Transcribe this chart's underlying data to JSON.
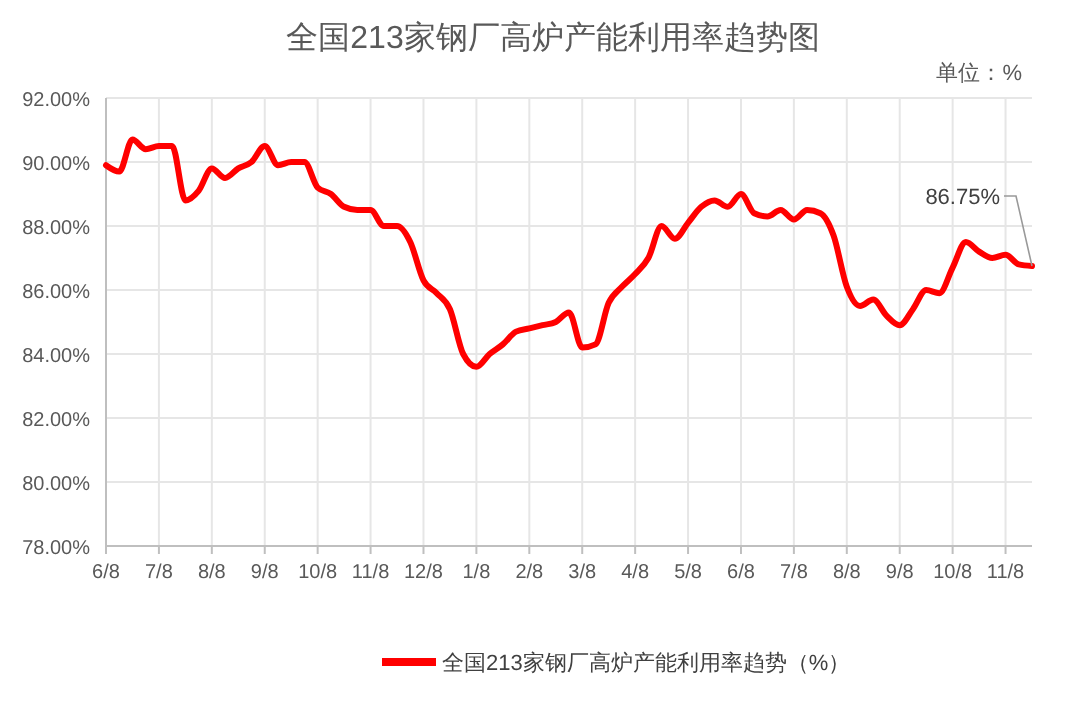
{
  "chart_data": {
    "type": "line",
    "title": "全国213家钢厂高炉产能利用率趋势图",
    "categories": [
      "6/8",
      null,
      null,
      null,
      "7/8",
      null,
      null,
      null,
      "8/8",
      null,
      null,
      null,
      "9/8",
      null,
      null,
      null,
      "10/8",
      null,
      null,
      null,
      "11/8",
      null,
      null,
      null,
      "12/8",
      null,
      null,
      null,
      "1/8",
      null,
      null,
      null,
      "2/8",
      null,
      null,
      null,
      "3/8",
      null,
      null,
      null,
      "4/8",
      null,
      null,
      null,
      "5/8",
      null,
      null,
      null,
      "6/8",
      null,
      null,
      null,
      "7/8",
      null,
      null,
      null,
      "8/8",
      null,
      null,
      null,
      "9/8",
      null,
      null,
      null,
      "10/8",
      null,
      null,
      null,
      "11/8",
      null,
      null
    ],
    "series": [
      {
        "name": "全国213家钢厂高炉产能利用率趋势（%）",
        "color": "#ff0000",
        "values": [
          89.9,
          89.7,
          90.7,
          90.4,
          90.5,
          90.5,
          88.8,
          89.1,
          89.8,
          89.5,
          89.8,
          90.0,
          90.5,
          89.9,
          90.0,
          90.0,
          89.2,
          89.0,
          88.6,
          88.5,
          88.5,
          88.0,
          88.0,
          87.5,
          86.3,
          85.9,
          85.4,
          84.0,
          83.6,
          84.0,
          84.3,
          84.7,
          84.8,
          84.9,
          85.0,
          85.3,
          84.2,
          84.3,
          85.6,
          86.1,
          86.5,
          87.0,
          88.0,
          87.6,
          88.1,
          88.6,
          88.8,
          88.6,
          89.0,
          88.4,
          88.3,
          88.5,
          88.2,
          88.5,
          88.4,
          87.7,
          86.1,
          85.5,
          85.7,
          85.2,
          84.9,
          85.4,
          86.0,
          85.9,
          86.7,
          87.5,
          87.2,
          87.0,
          87.1,
          86.8,
          86.75
        ]
      }
    ],
    "ylim": [
      78,
      92
    ],
    "yticks": [
      {
        "value": 78,
        "label": "78.00%"
      },
      {
        "value": 80,
        "label": "80.00%"
      },
      {
        "value": 82,
        "label": "82.00%"
      },
      {
        "value": 84,
        "label": "84.00%"
      },
      {
        "value": 86,
        "label": "86.00%"
      },
      {
        "value": 88,
        "label": "88.00%"
      },
      {
        "value": 90,
        "label": "90.00%"
      },
      {
        "value": 92,
        "label": "92.00%"
      }
    ],
    "grid": true,
    "legend": "bottom",
    "marker": "none",
    "line_style": "solid",
    "annotations": [
      "单位：%",
      {
        "text": "86.75%",
        "y": 86.75
      }
    ]
  }
}
